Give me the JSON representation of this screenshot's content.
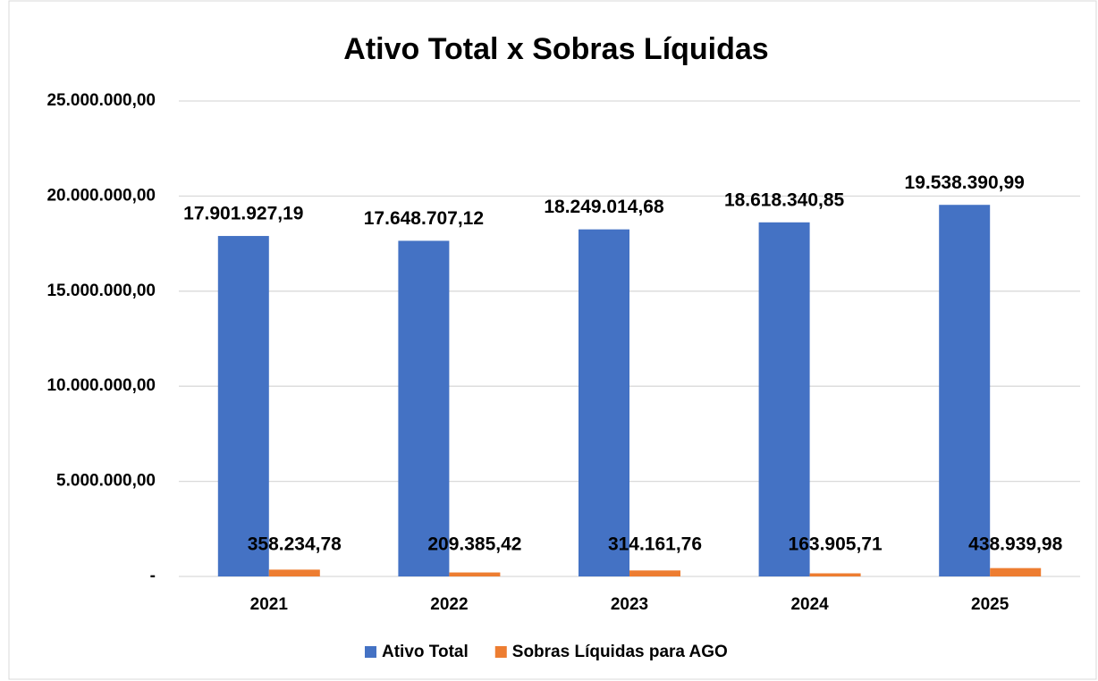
{
  "chart_data": {
    "type": "bar",
    "title": "Ativo Total x Sobras Líquidas",
    "categories": [
      "2021",
      "2022",
      "2023",
      "2024",
      "2025"
    ],
    "series": [
      {
        "name": "Ativo Total",
        "color": "#4472c4",
        "values": [
          17901927.19,
          17648707.12,
          18249014.68,
          18618340.85,
          19538390.99
        ],
        "value_labels": [
          "17.901.927,19",
          "17.648.707,12",
          "18.249.014,68",
          "18.618.340,85",
          "19.538.390,99"
        ]
      },
      {
        "name": "Sobras Líquidas para AGO",
        "color": "#ed7d31",
        "values": [
          358234.78,
          209385.42,
          314161.76,
          163905.71,
          438939.98
        ],
        "value_labels": [
          "358.234,78",
          "209.385,42",
          "314.161,76",
          "163.905,71",
          "438.939,98"
        ]
      }
    ],
    "ylim": [
      0,
      25000000
    ],
    "yticks": [
      {
        "value": 0,
        "label": "-"
      },
      {
        "value": 5000000,
        "label": "5.000.000,00"
      },
      {
        "value": 10000000,
        "label": "10.000.000,00"
      },
      {
        "value": 15000000,
        "label": "15.000.000,00"
      },
      {
        "value": 20000000,
        "label": "20.000.000,00"
      },
      {
        "value": 25000000,
        "label": "25.000.000,00"
      }
    ],
    "grid": true,
    "legend": "bottom"
  }
}
